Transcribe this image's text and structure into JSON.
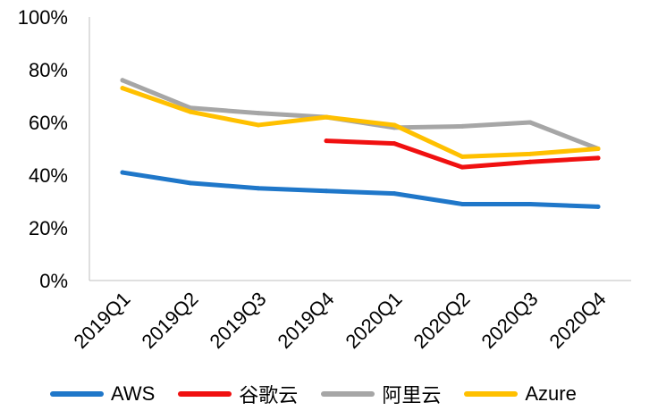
{
  "chart_data": {
    "type": "line",
    "categories": [
      "2019Q1",
      "2019Q2",
      "2019Q3",
      "2019Q4",
      "2020Q1",
      "2020Q2",
      "2020Q3",
      "2020Q4"
    ],
    "yticks": [
      "0%",
      "20%",
      "40%",
      "60%",
      "80%",
      "100%"
    ],
    "ylim": [
      0,
      100
    ],
    "grid": false,
    "legend_position": "bottom",
    "series": [
      {
        "name": "AWS",
        "color": "#1F77C9",
        "values": [
          41,
          37,
          35,
          34,
          33,
          29,
          29,
          28
        ]
      },
      {
        "name": "谷歌云",
        "color": "#F01010",
        "values": [
          null,
          null,
          null,
          53,
          52,
          43,
          45,
          46.5
        ]
      },
      {
        "name": "阿里云",
        "color": "#A6A6A6",
        "values": [
          76,
          65.5,
          63.5,
          62,
          58,
          58.5,
          60,
          50
        ]
      },
      {
        "name": "Azure",
        "color": "#FFC000",
        "values": [
          73,
          64,
          59,
          62,
          59,
          47,
          48,
          50
        ]
      }
    ]
  }
}
